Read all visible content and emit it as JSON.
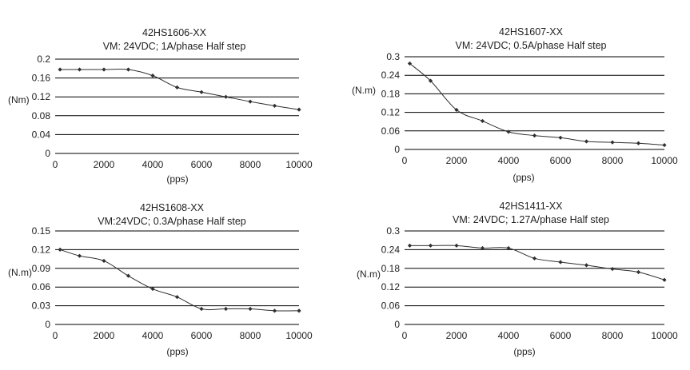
{
  "chart_data": [
    {
      "type": "line",
      "title": "42HS1606-XX",
      "subtitle": "VM: 24VDC; 1A/phase  Half step",
      "xlabel": "(pps)",
      "ylabel": "(Nm)",
      "xlim": [
        0,
        10000
      ],
      "ylim": [
        0,
        0.2
      ],
      "xticks": [
        "0",
        "2000",
        "4000",
        "6000",
        "8000",
        "10000"
      ],
      "yticks": [
        "0",
        "0.04",
        "0.08",
        "0.12",
        "0.16",
        "0.2"
      ],
      "grid": "horizontal",
      "x": [
        200,
        1000,
        2000,
        3000,
        4000,
        5000,
        6000,
        7000,
        8000,
        9000,
        10000
      ],
      "y": [
        0.178,
        0.178,
        0.178,
        0.178,
        0.165,
        0.14,
        0.13,
        0.12,
        0.11,
        0.101,
        0.093
      ]
    },
    {
      "type": "line",
      "title": "42HS1607-XX",
      "subtitle": "VM: 24VDC; 0.5A/phase Half step",
      "xlabel": "(pps)",
      "ylabel": "(N.m)",
      "xlim": [
        0,
        10000
      ],
      "ylim": [
        0,
        0.3
      ],
      "xticks": [
        "0",
        "2000",
        "4000",
        "6000",
        "8000",
        "10000"
      ],
      "yticks": [
        "0",
        "0.06",
        "0.12",
        "0.18",
        "0.24",
        "0.3"
      ],
      "grid": "horizontal",
      "x": [
        200,
        1000,
        2000,
        3000,
        4000,
        5000,
        6000,
        7000,
        8000,
        9000,
        10000
      ],
      "y": [
        0.278,
        0.222,
        0.128,
        0.092,
        0.057,
        0.045,
        0.038,
        0.026,
        0.023,
        0.02,
        0.014
      ]
    },
    {
      "type": "line",
      "title": "42HS1608-XX",
      "subtitle": "VM:24VDC; 0.3A/phase Half step",
      "xlabel": "(pps)",
      "ylabel": "(N.m)",
      "xlim": [
        0,
        10000
      ],
      "ylim": [
        0,
        0.15
      ],
      "xticks": [
        "0",
        "2000",
        "4000",
        "6000",
        "8000",
        "10000"
      ],
      "yticks": [
        "0",
        "0.03",
        "0.06",
        "0.09",
        "0.12",
        "0.15"
      ],
      "grid": "horizontal",
      "x": [
        200,
        1000,
        2000,
        3000,
        4000,
        5000,
        6000,
        7000,
        8000,
        9000,
        10000
      ],
      "y": [
        0.12,
        0.11,
        0.102,
        0.078,
        0.057,
        0.044,
        0.025,
        0.025,
        0.025,
        0.022,
        0.022
      ]
    },
    {
      "type": "line",
      "title": "42HS1411-XX",
      "subtitle": "VM: 24VDC; 1.27A/phase Half step",
      "xlabel": "(pps)",
      "ylabel": "(N.m)",
      "xlim": [
        0,
        10000
      ],
      "ylim": [
        0,
        0.3
      ],
      "xticks": [
        "0",
        "2000",
        "4000",
        "6000",
        "8000",
        "10000"
      ],
      "yticks": [
        "0",
        "0.06",
        "0.12",
        "0.18",
        "0.24",
        "0.3"
      ],
      "grid": "horizontal",
      "x": [
        200,
        1000,
        2000,
        3000,
        4000,
        5000,
        6000,
        7000,
        8000,
        9000,
        10000
      ],
      "y": [
        0.253,
        0.253,
        0.253,
        0.245,
        0.245,
        0.212,
        0.2,
        0.19,
        0.178,
        0.168,
        0.143
      ]
    }
  ]
}
